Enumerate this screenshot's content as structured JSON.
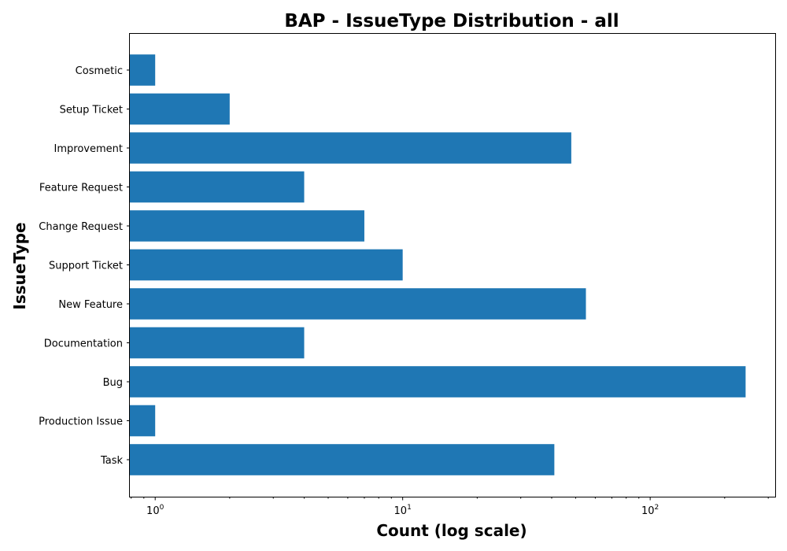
{
  "chart_data": {
    "type": "bar",
    "orientation": "horizontal",
    "title": "BAP - IssueType Distribution - all",
    "xlabel": "Count (log scale)",
    "ylabel": "IssueType",
    "xscale": "log",
    "xlim": [
      0.79,
      320
    ],
    "x_ticks": [
      {
        "base": "10",
        "exp": "0",
        "value": 1
      },
      {
        "base": "10",
        "exp": "1",
        "value": 10
      },
      {
        "base": "10",
        "exp": "2",
        "value": 100
      }
    ],
    "categories": [
      "Cosmetic",
      "Setup Ticket",
      "Improvement",
      "Feature Request",
      "Change Request",
      "Support Ticket",
      "New Feature",
      "Documentation",
      "Bug",
      "Production Issue",
      "Task"
    ],
    "values": [
      1,
      2,
      48,
      4,
      7,
      10,
      55,
      4,
      243,
      1,
      41
    ],
    "color": "#1f77b4",
    "grid": false,
    "legend": "none"
  }
}
